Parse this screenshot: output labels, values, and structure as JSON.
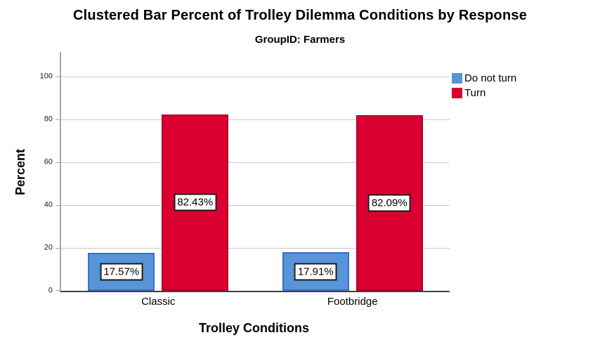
{
  "chart_data": {
    "type": "bar",
    "title": "Clustered Bar Percent of Trolley Dilemma Conditions by Response",
    "subtitle": "GroupID: Farmers",
    "xlabel": "Trolley Conditions",
    "ylabel": "Percent",
    "categories": [
      "Classic",
      "Footbridge"
    ],
    "series": [
      {
        "name": "Do not turn",
        "color": "#5794D8",
        "border_color": "#3A70C0",
        "values": [
          17.57,
          17.91
        ],
        "labels": [
          "17.57%",
          "17.91%"
        ]
      },
      {
        "name": "Turn",
        "color": "#DB0032",
        "border_color": "#B00028",
        "values": [
          82.43,
          82.09
        ],
        "labels": [
          "82.43%",
          "82.09%"
        ]
      }
    ],
    "yticks": [
      0,
      20,
      40,
      60,
      80,
      100
    ],
    "ylim": [
      0,
      100
    ],
    "grid": true,
    "legend_position": "top-right",
    "colors": {
      "background": "#FFFFFF",
      "gridline": "#C9C9C9",
      "y_axis_line": "#A6A6A6",
      "baseline": "#3F3F3F",
      "data_label_box_border": "#1A1A1A",
      "text": "#000000"
    }
  }
}
